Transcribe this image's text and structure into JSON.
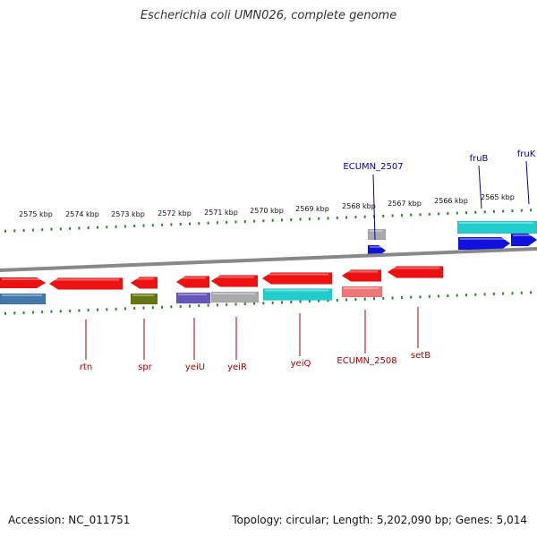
{
  "title": "Escherichia coli UMN026, complete genome",
  "footer": {
    "accession": "Accession: NC_011751",
    "topology": "Topology: circular; Length: 5,202,090 bp; Genes: 5,014"
  },
  "colors": {
    "red": "#ee1111",
    "cyan": "#22cccc",
    "blue": "#1111dd",
    "gray": "#aaaaaa",
    "olive": "#667711",
    "purple": "#6655bb",
    "steel": "#4477aa",
    "salmon": "#ee7777",
    "backbone": "#888888",
    "tick": "#228822",
    "label_top": "#0000aa",
    "label_bottom": "#aa0000"
  },
  "top_ticks": [
    {
      "label": "2575 kbp"
    },
    {
      "label": "2574 kbp"
    },
    {
      "label": "2573 kbp"
    },
    {
      "label": "2572 kbp"
    },
    {
      "label": "2571 kbp"
    },
    {
      "label": "2570 kbp"
    },
    {
      "label": "2569 kbp"
    },
    {
      "label": "2568 kbp"
    },
    {
      "label": "2567 kbp"
    },
    {
      "label": "2566 kbp"
    },
    {
      "label": "2565 kbp"
    }
  ],
  "top_labels": [
    {
      "label": "ECUMN_2507"
    },
    {
      "label": "fruB"
    },
    {
      "label": "fruK"
    }
  ],
  "bottom_labels": [
    {
      "label": "rtn"
    },
    {
      "label": "spr"
    },
    {
      "label": "yeiU"
    },
    {
      "label": "yeiR"
    },
    {
      "label": "yeiQ"
    },
    {
      "label": "ECUMN_2508"
    },
    {
      "label": "setB"
    }
  ]
}
